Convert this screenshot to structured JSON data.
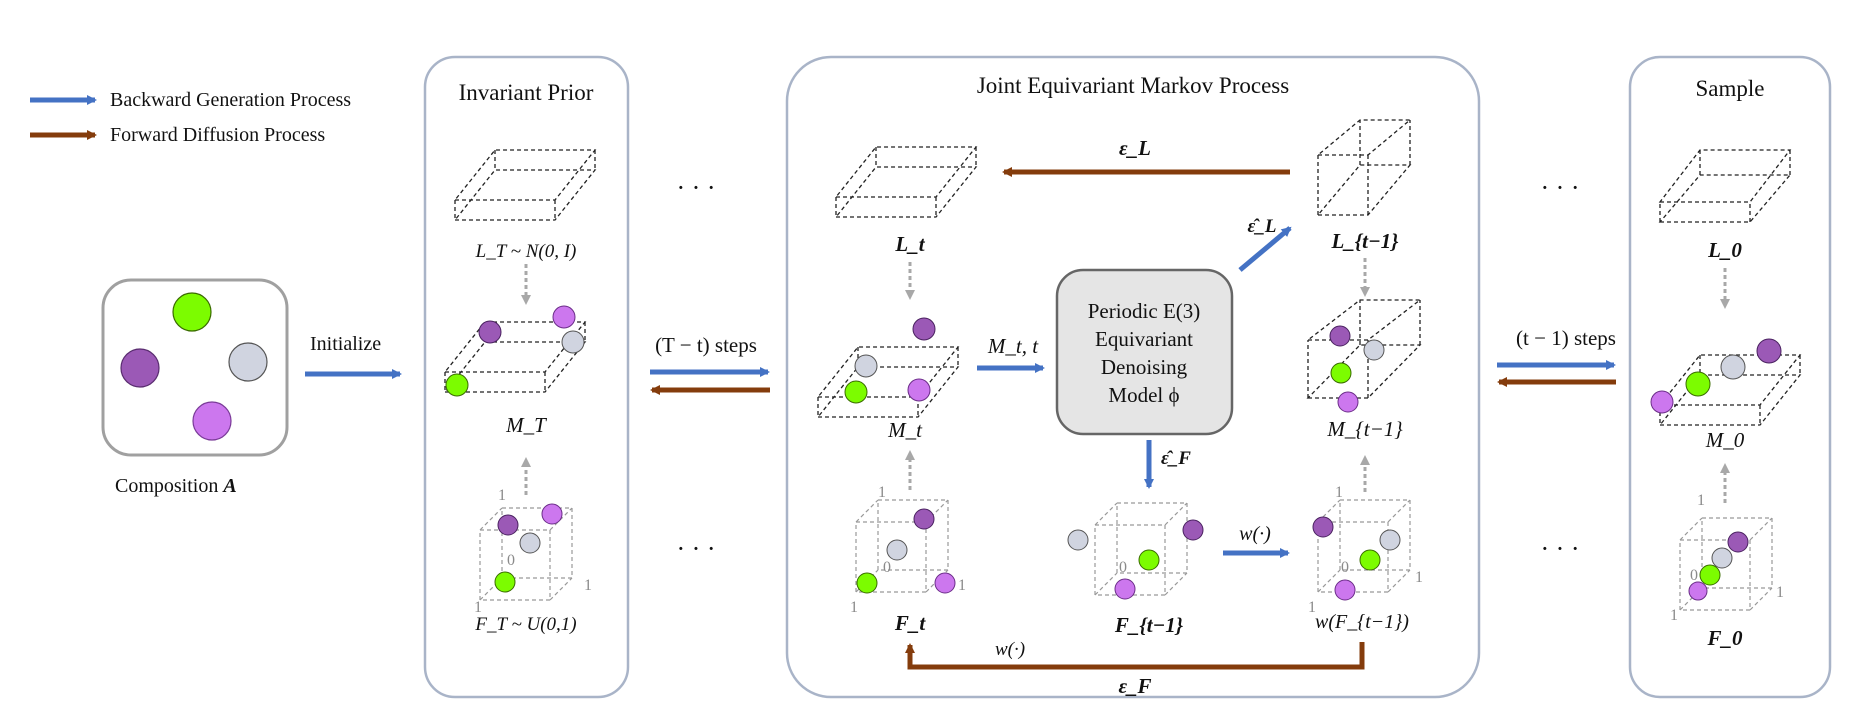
{
  "colors": {
    "blue": "#4472c4",
    "brown": "#843c0c",
    "green": "#7cfc00",
    "purple": "#9b59b6",
    "grey_atom": "#d0d4e0",
    "violet": "#cc77ee",
    "panel_border": "#a9b4c8",
    "model_box": "#e5e5e5"
  },
  "legend": {
    "backward": "Backward Generation Process",
    "forward": "Forward Diffusion Process"
  },
  "composition": {
    "label": "Composition ",
    "var": "A"
  },
  "initialize": "Initialize",
  "panels": {
    "prior": "Invariant Prior",
    "joint": "Joint Equivariant Markov Process",
    "sample": "Sample"
  },
  "steps": {
    "left": "(T − t) steps",
    "right": "(t − 1) steps"
  },
  "ellipsis": "· · ·",
  "model": {
    "line1": "Periodic E(3)",
    "line2": "Equivariant",
    "line3": "Denoising",
    "line4": "Model ϕ"
  },
  "math": {
    "LT": "L_T ~ N(0, I)",
    "MT": "M_T",
    "FT": "F_T ~ U(0,1)",
    "Lt": "L_t",
    "Mt": "M_t",
    "Ft": "F_t",
    "Mt_t": "M_t, t",
    "eps_L": "ε_L",
    "eps_L_hat": "ε̂_L",
    "eps_F": "ε_F",
    "eps_F_hat": "ε̂_F",
    "Lt1": "L_{t−1}",
    "Mt1": "M_{t−1}",
    "Ft1": "F_{t−1}",
    "wF": "w(F_{t−1})",
    "w": "w(·)",
    "L0": "L_0",
    "M0": "M_0",
    "F0": "F_0"
  },
  "axis_labels": {
    "one": "1",
    "zero": "0"
  }
}
